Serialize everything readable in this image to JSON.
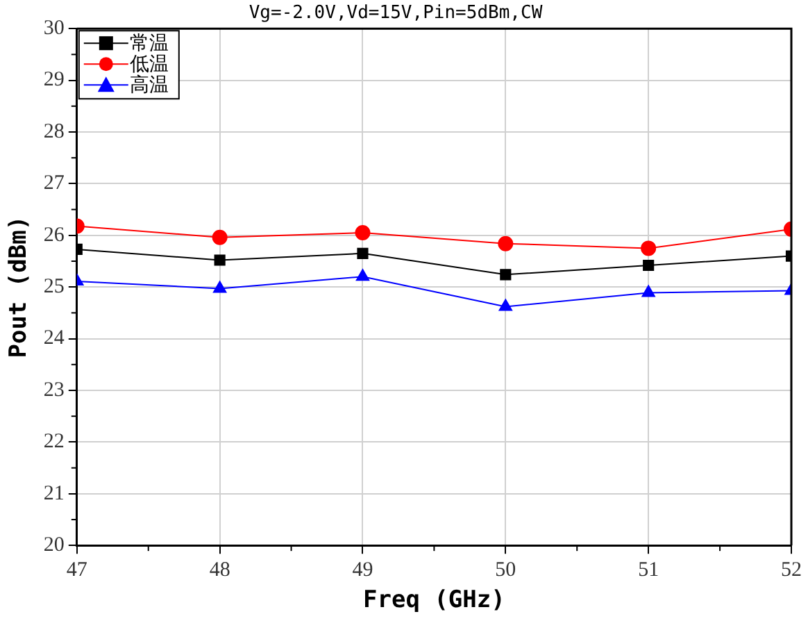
{
  "chart_data": {
    "type": "line",
    "title": "Vg=-2.0V,Vd=15V,Pin=5dBm,CW",
    "xlabel": "Freq (GHz)",
    "ylabel": "Pout (dBm)",
    "x": [
      47,
      48,
      49,
      50,
      51,
      52
    ],
    "series": [
      {
        "name": "常温",
        "color": "#000000",
        "marker": "square",
        "values": [
          25.73,
          25.52,
          25.65,
          25.24,
          25.42,
          25.6
        ]
      },
      {
        "name": "低温",
        "color": "#ff0000",
        "marker": "circle",
        "values": [
          26.18,
          25.96,
          26.05,
          25.84,
          25.75,
          26.12
        ]
      },
      {
        "name": "高温",
        "color": "#0000ff",
        "marker": "triangle",
        "values": [
          25.11,
          24.97,
          25.2,
          24.62,
          24.89,
          24.93
        ]
      }
    ],
    "xlim": [
      47,
      52
    ],
    "xticks": [
      47,
      48,
      49,
      50,
      51,
      52
    ],
    "ylim": [
      20,
      30
    ],
    "yticks": [
      20,
      21,
      22,
      23,
      24,
      25,
      26,
      27,
      28,
      29,
      30
    ],
    "grid": true,
    "legend": "top left",
    "line_style": "solid"
  }
}
